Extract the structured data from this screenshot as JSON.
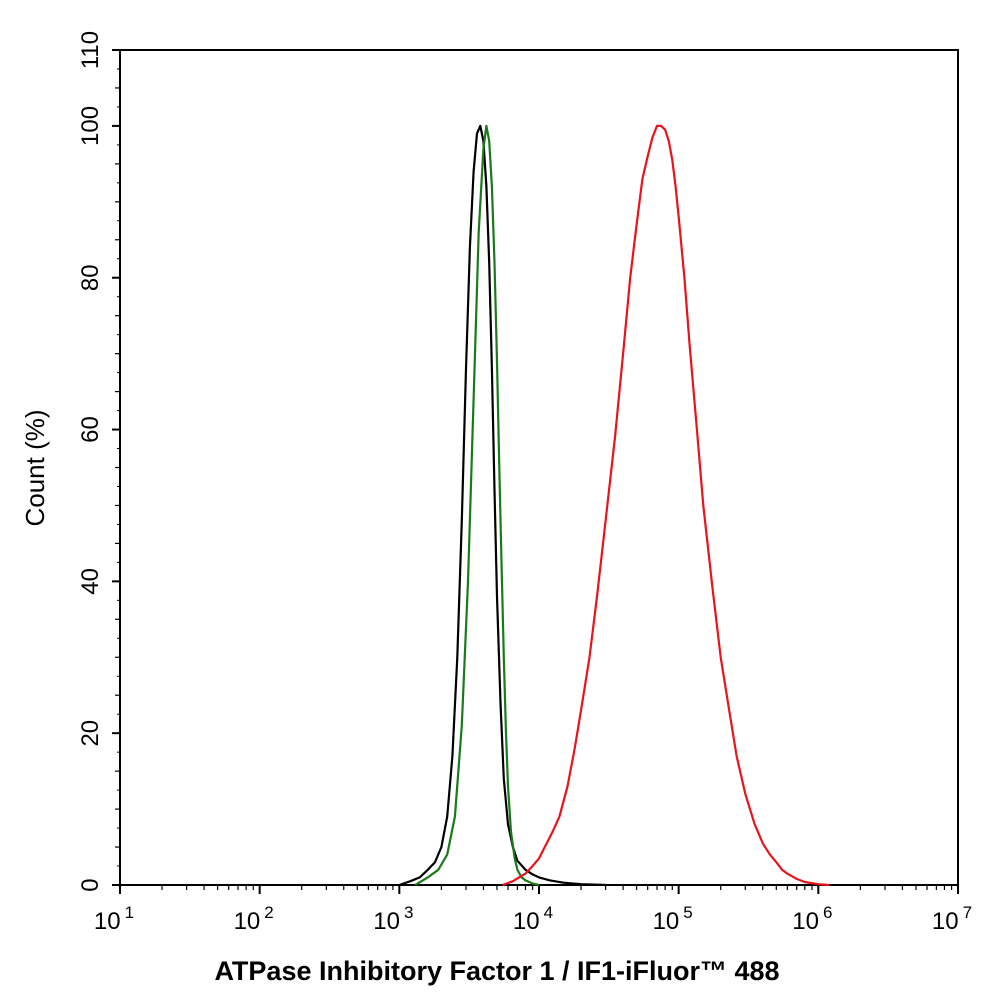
{
  "chart_data": {
    "type": "line",
    "xlabel": "ATPase Inhibitory Factor 1 / IF1-iFluor™ 488",
    "ylabel": "Count  (%)",
    "x_scale": "log",
    "xlim": [
      10,
      10000000
    ],
    "ylim": [
      0,
      110
    ],
    "x_ticks": [
      {
        "base": "10",
        "exp": "1",
        "value": 10
      },
      {
        "base": "10",
        "exp": "2",
        "value": 100
      },
      {
        "base": "10",
        "exp": "3",
        "value": 1000
      },
      {
        "base": "10",
        "exp": "4",
        "value": 10000
      },
      {
        "base": "10",
        "exp": "5",
        "value": 100000
      },
      {
        "base": "10",
        "exp": "6",
        "value": 1000000
      },
      {
        "base": "10",
        "exp": "7",
        "value": 10000000
      }
    ],
    "y_ticks": [
      {
        "label": "0",
        "value": 0
      },
      {
        "label": "20",
        "value": 20
      },
      {
        "label": "40",
        "value": 40
      },
      {
        "label": "60",
        "value": 60
      },
      {
        "label": "80",
        "value": 80
      },
      {
        "label": "100",
        "value": 100
      },
      {
        "label": "110",
        "value": 110
      }
    ],
    "grid": false,
    "legend": "none",
    "series": [
      {
        "color": "#000000",
        "x": [
          1000,
          1200,
          1400,
          1600,
          1800,
          2000,
          2200,
          2400,
          2600,
          2800,
          3000,
          3200,
          3400,
          3600,
          3800,
          4000,
          4200,
          4400,
          4600,
          4800,
          5000,
          5300,
          5600,
          6000,
          6500,
          7000,
          8000,
          9000,
          10000,
          12000,
          15000,
          20000,
          25000,
          30000
        ],
        "y": [
          0,
          0.5,
          1,
          2,
          3,
          5,
          9,
          17,
          30,
          48,
          68,
          84,
          94,
          99,
          100,
          98,
          92,
          82,
          68,
          52,
          38,
          24,
          14,
          8,
          5,
          3.2,
          2,
          1.4,
          1,
          0.6,
          0.3,
          0.1,
          0.05,
          0
        ]
      },
      {
        "color": "#1a7a1a",
        "x": [
          1300,
          1600,
          1900,
          2200,
          2500,
          2800,
          3100,
          3400,
          3700,
          4000,
          4200,
          4400,
          4600,
          4800,
          5000,
          5200,
          5400,
          5600,
          5800,
          6000,
          6300,
          6700,
          7000,
          7500,
          8000,
          9000,
          10000
        ],
        "y": [
          0,
          1,
          2,
          4,
          9,
          21,
          40,
          64,
          86,
          97,
          100,
          98,
          92,
          82,
          69,
          55,
          42,
          30,
          20,
          13,
          7,
          3.5,
          2,
          1,
          0.6,
          0.2,
          0
        ]
      },
      {
        "color": "#e8141b",
        "x": [
          5500,
          6500,
          8000,
          9000,
          10000,
          11000,
          12500,
          14000,
          16000,
          18000,
          20000,
          23000,
          26000,
          30000,
          35000,
          40000,
          45000,
          50000,
          55000,
          60000,
          65000,
          70000,
          75000,
          80000,
          85000,
          90000,
          95000,
          100000,
          110000,
          120000,
          135000,
          150000,
          175000,
          200000,
          230000,
          260000,
          300000,
          350000,
          400000,
          450000,
          500000,
          550000,
          600000,
          700000,
          800000,
          1000000,
          1200000
        ],
        "y": [
          0,
          0.5,
          1.5,
          2.5,
          3.5,
          5,
          7,
          9,
          13,
          18,
          23,
          30,
          38,
          48,
          59,
          70,
          80,
          87,
          93,
          96,
          98.5,
          100,
          100,
          99.5,
          98,
          95.5,
          92,
          88,
          80,
          71,
          60,
          50,
          39,
          30,
          23,
          17,
          12,
          8,
          5.5,
          4,
          3,
          2,
          1.5,
          0.8,
          0.4,
          0.1,
          0
        ]
      }
    ]
  }
}
